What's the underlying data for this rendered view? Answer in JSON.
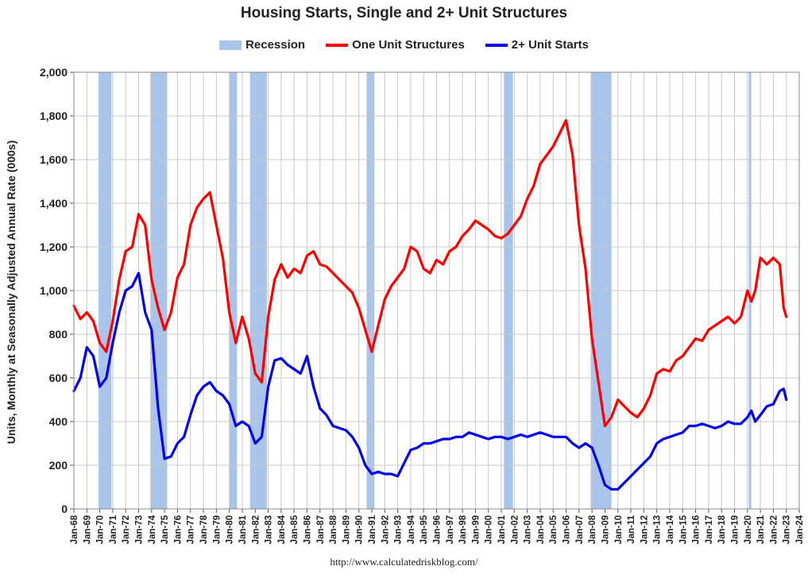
{
  "chart_data": {
    "type": "line",
    "title": "Housing Starts, Single and 2+ Unit Structures",
    "ylabel": "Units, Monthly at Seasonally Adjusted Annual Rate (000s)",
    "xlabel": "",
    "source": "http://www.calculatedriskblog.com/",
    "ylim": [
      0,
      2000
    ],
    "yticks": [
      0,
      200,
      400,
      600,
      800,
      1000,
      1200,
      1400,
      1600,
      1800,
      2000
    ],
    "ytick_labels": [
      "0",
      "200",
      "400",
      "600",
      "800",
      "1,000",
      "1,200",
      "1,400",
      "1,600",
      "1,800",
      "2,000"
    ],
    "xlim": [
      1968,
      2024
    ],
    "xtick_labels": [
      "Jan-68",
      "Jan-69",
      "Jan-70",
      "Jan-71",
      "Jan-72",
      "Jan-73",
      "Jan-74",
      "Jan-75",
      "Jan-76",
      "Jan-77",
      "Jan-78",
      "Jan-79",
      "Jan-80",
      "Jan-81",
      "Jan-82",
      "Jan-83",
      "Jan-84",
      "Jan-85",
      "Jan-86",
      "Jan-87",
      "Jan-88",
      "Jan-89",
      "Jan-90",
      "Jan-91",
      "Jan-92",
      "Jan-93",
      "Jan-94",
      "Jan-95",
      "Jan-96",
      "Jan-97",
      "Jan-98",
      "Jan-99",
      "Jan-00",
      "Jan-01",
      "Jan-02",
      "Jan-03",
      "Jan-04",
      "Jan-05",
      "Jan-06",
      "Jan-07",
      "Jan-08",
      "Jan-09",
      "Jan-10",
      "Jan-11",
      "Jan-12",
      "Jan-13",
      "Jan-14",
      "Jan-15",
      "Jan-16",
      "Jan-17",
      "Jan-18",
      "Jan-19",
      "Jan-20",
      "Jan-21",
      "Jan-22",
      "Jan-23",
      "Jan-24"
    ],
    "grid": true,
    "legend_position": "top-center",
    "recession": {
      "name": "Recession",
      "color": "#a9c4eb",
      "periods": [
        [
          1969.9,
          1970.9
        ],
        [
          1973.9,
          1975.2
        ],
        [
          1980.0,
          1980.6
        ],
        [
          1981.6,
          1982.9
        ],
        [
          1990.6,
          1991.2
        ],
        [
          2001.2,
          2001.9
        ],
        [
          2007.9,
          2009.5
        ],
        [
          2020.1,
          2020.3
        ]
      ]
    },
    "series": [
      {
        "name": "One Unit Structures",
        "color": "#ff0000",
        "x": [
          1968.0,
          1968.5,
          1969.0,
          1969.5,
          1970.0,
          1970.5,
          1971.0,
          1971.5,
          1972.0,
          1972.5,
          1973.0,
          1973.5,
          1974.0,
          1974.5,
          1975.0,
          1975.5,
          1976.0,
          1976.5,
          1977.0,
          1977.5,
          1978.0,
          1978.5,
          1979.0,
          1979.5,
          1980.0,
          1980.5,
          1981.0,
          1981.5,
          1982.0,
          1982.5,
          1983.0,
          1983.5,
          1984.0,
          1984.5,
          1985.0,
          1985.5,
          1986.0,
          1986.5,
          1987.0,
          1987.5,
          1988.0,
          1988.5,
          1989.0,
          1989.5,
          1990.0,
          1990.5,
          1991.0,
          1991.5,
          1992.0,
          1992.5,
          1993.0,
          1993.5,
          1994.0,
          1994.5,
          1995.0,
          1995.5,
          1996.0,
          1996.5,
          1997.0,
          1997.5,
          1998.0,
          1998.5,
          1999.0,
          1999.5,
          2000.0,
          2000.5,
          2001.0,
          2001.5,
          2002.0,
          2002.5,
          2003.0,
          2003.5,
          2004.0,
          2004.5,
          2005.0,
          2005.5,
          2006.0,
          2006.5,
          2007.0,
          2007.5,
          2008.0,
          2008.5,
          2009.0,
          2009.5,
          2010.0,
          2010.5,
          2011.0,
          2011.5,
          2012.0,
          2012.5,
          2013.0,
          2013.5,
          2014.0,
          2014.5,
          2015.0,
          2015.5,
          2016.0,
          2016.5,
          2017.0,
          2017.5,
          2018.0,
          2018.5,
          2019.0,
          2019.5,
          2020.0,
          2020.3,
          2020.6,
          2021.0,
          2021.5,
          2022.0,
          2022.5,
          2022.8,
          2023.0
        ],
        "values": [
          930,
          870,
          900,
          860,
          760,
          720,
          860,
          1050,
          1180,
          1200,
          1350,
          1300,
          1050,
          920,
          820,
          900,
          1060,
          1120,
          1300,
          1380,
          1420,
          1450,
          1300,
          1150,
          900,
          760,
          880,
          780,
          620,
          580,
          880,
          1050,
          1120,
          1060,
          1100,
          1080,
          1160,
          1180,
          1120,
          1110,
          1080,
          1050,
          1020,
          990,
          920,
          820,
          720,
          840,
          960,
          1020,
          1060,
          1100,
          1200,
          1180,
          1100,
          1080,
          1140,
          1120,
          1180,
          1200,
          1250,
          1280,
          1320,
          1300,
          1280,
          1250,
          1240,
          1260,
          1300,
          1340,
          1420,
          1480,
          1580,
          1620,
          1660,
          1720,
          1780,
          1620,
          1300,
          1100,
          780,
          580,
          380,
          420,
          500,
          470,
          440,
          420,
          460,
          520,
          620,
          640,
          630,
          680,
          700,
          740,
          780,
          770,
          820,
          840,
          860,
          880,
          850,
          880,
          1000,
          950,
          1000,
          1150,
          1120,
          1150,
          1120,
          920,
          880
        ]
      },
      {
        "name": "2+ Unit Starts",
        "color": "#0000ee",
        "x": [
          1968.0,
          1968.5,
          1969.0,
          1969.5,
          1970.0,
          1970.5,
          1971.0,
          1971.5,
          1972.0,
          1972.5,
          1973.0,
          1973.5,
          1974.0,
          1974.5,
          1975.0,
          1975.5,
          1976.0,
          1976.5,
          1977.0,
          1977.5,
          1978.0,
          1978.5,
          1979.0,
          1979.5,
          1980.0,
          1980.5,
          1981.0,
          1981.5,
          1982.0,
          1982.5,
          1983.0,
          1983.5,
          1984.0,
          1984.5,
          1985.0,
          1985.5,
          1986.0,
          1986.5,
          1987.0,
          1987.5,
          1988.0,
          1988.5,
          1989.0,
          1989.5,
          1990.0,
          1990.5,
          1991.0,
          1991.5,
          1992.0,
          1992.5,
          1993.0,
          1993.5,
          1994.0,
          1994.5,
          1995.0,
          1995.5,
          1996.0,
          1996.5,
          1997.0,
          1997.5,
          1998.0,
          1998.5,
          1999.0,
          1999.5,
          2000.0,
          2000.5,
          2001.0,
          2001.5,
          2002.0,
          2002.5,
          2003.0,
          2003.5,
          2004.0,
          2004.5,
          2005.0,
          2005.5,
          2006.0,
          2006.5,
          2007.0,
          2007.5,
          2008.0,
          2008.5,
          2009.0,
          2009.5,
          2010.0,
          2010.5,
          2011.0,
          2011.5,
          2012.0,
          2012.5,
          2013.0,
          2013.5,
          2014.0,
          2014.5,
          2015.0,
          2015.5,
          2016.0,
          2016.5,
          2017.0,
          2017.5,
          2018.0,
          2018.5,
          2019.0,
          2019.5,
          2020.0,
          2020.3,
          2020.6,
          2021.0,
          2021.5,
          2022.0,
          2022.5,
          2022.8,
          2023.0
        ],
        "values": [
          540,
          600,
          740,
          700,
          560,
          600,
          760,
          900,
          1000,
          1020,
          1080,
          900,
          820,
          460,
          230,
          240,
          300,
          330,
          430,
          520,
          560,
          580,
          540,
          520,
          480,
          380,
          400,
          380,
          300,
          330,
          560,
          680,
          690,
          660,
          640,
          620,
          700,
          560,
          460,
          430,
          380,
          370,
          360,
          330,
          280,
          200,
          160,
          170,
          160,
          160,
          150,
          210,
          270,
          280,
          300,
          300,
          310,
          320,
          320,
          330,
          330,
          350,
          340,
          330,
          320,
          330,
          330,
          320,
          330,
          340,
          330,
          340,
          350,
          340,
          330,
          330,
          330,
          300,
          280,
          300,
          280,
          200,
          110,
          90,
          90,
          120,
          150,
          180,
          210,
          240,
          300,
          320,
          330,
          340,
          350,
          380,
          380,
          390,
          380,
          370,
          380,
          400,
          390,
          390,
          420,
          450,
          400,
          430,
          470,
          480,
          540,
          550,
          500
        ]
      }
    ]
  }
}
